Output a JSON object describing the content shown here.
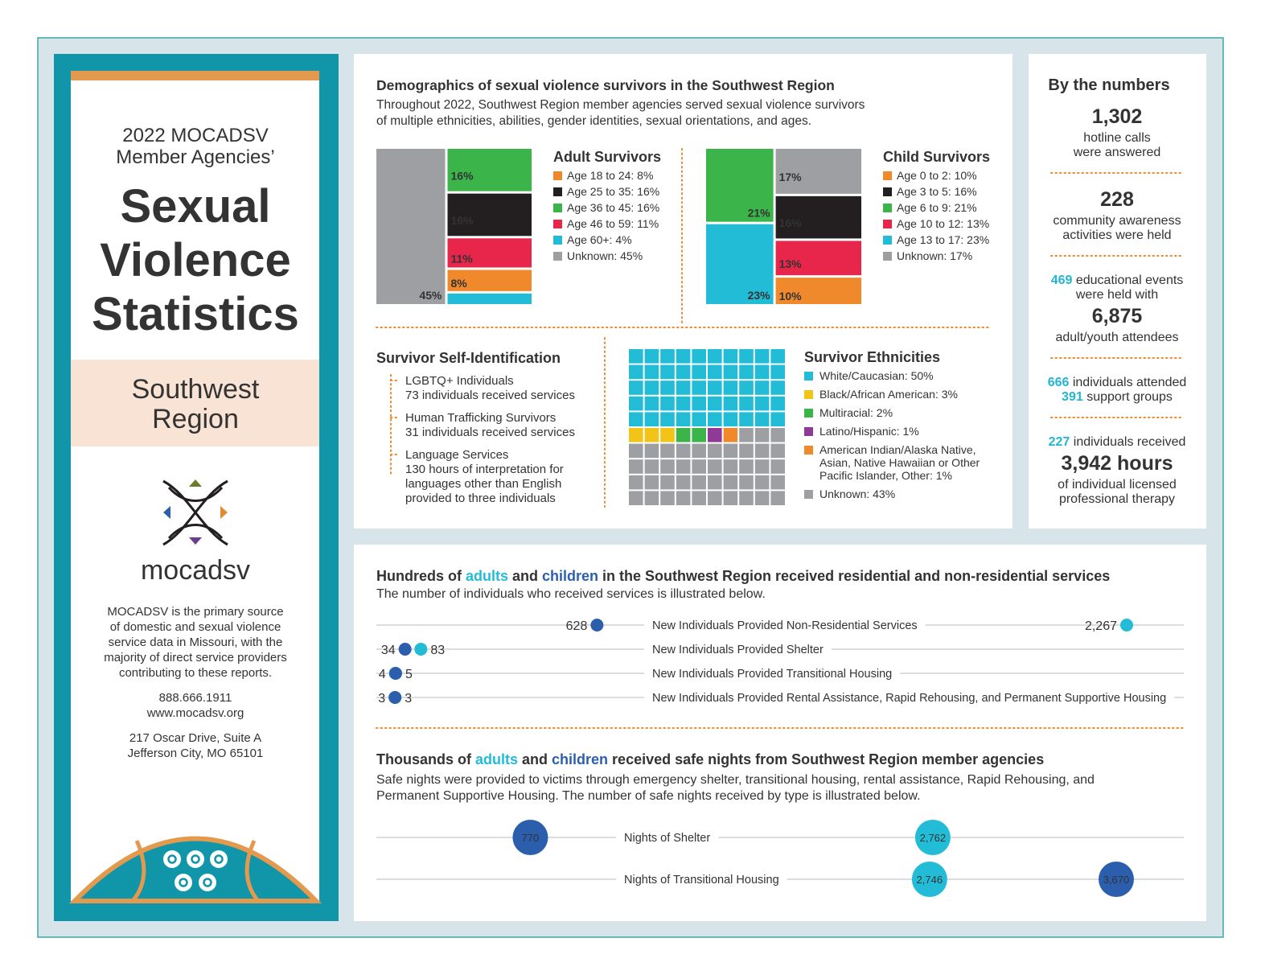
{
  "sidebar": {
    "heading": [
      "2022 MOCADSV",
      "Member Agencies’"
    ],
    "title": [
      "Sexual",
      "Violence",
      "Statistics"
    ],
    "region": [
      "Southwest",
      "Region"
    ],
    "logo": "mocadsv",
    "about": [
      "MOCADSV is the primary source",
      "of domestic and sexual violence",
      "service data in Missouri, with the",
      "majority of direct service providers",
      "contributing to these reports."
    ],
    "phone": "888.666.1911",
    "website": "www.mocadsv.org",
    "address": [
      "217 Oscar Drive, Suite A",
      "Jefferson City, MO 65101"
    ]
  },
  "demographics": {
    "title": "Demographics of sexual violence survivors in the Southwest Region",
    "subtitle": [
      "Throughout 2022, Southwest Region member agencies served sexual violence survivors",
      "of multiple ethnicities, abilities, gender identities, sexual orientations, and ages."
    ],
    "charts": [
      {
        "type": "mosaic",
        "title": "Adult Survivors",
        "categories": [
          "Age 18 to 24: 8%",
          "Age 25 to 35: 16%",
          "Age 36 to 45: 16%",
          "Age 46 to 59: 11%",
          "Age 60+: 4%",
          "Unknown: 45%"
        ],
        "values": [
          8,
          16,
          16,
          11,
          4,
          45
        ],
        "value_labels": [
          "8%",
          "16%",
          "16%",
          "11%",
          null,
          "45%"
        ],
        "colors": [
          "#f0892b",
          "#231f20",
          "#3bb54a",
          "#e8264b",
          "#22bcd6",
          "#9d9fa2"
        ]
      },
      {
        "type": "mosaic",
        "title": "Child Survivors",
        "categories": [
          "Age 0 to 2: 10%",
          "Age 3 to 5: 16%",
          "Age 6 to 9: 21%",
          "Age 10 to 12: 13%",
          "Age 13 to 17: 23%",
          "Unknown: 17%"
        ],
        "values": [
          10,
          16,
          21,
          13,
          23,
          17
        ],
        "value_labels": [
          "10%",
          "16%",
          "21%",
          "13%",
          "23%",
          "17%"
        ],
        "colors": [
          "#f0892b",
          "#231f20",
          "#3bb54a",
          "#e8264b",
          "#22bcd6",
          "#9d9fa2"
        ]
      }
    ]
  },
  "self_identification": {
    "title": "Survivor Self-Identification",
    "items": [
      {
        "name": "LGBTQ+ Individuals",
        "detail": [
          "73 individuals received services"
        ]
      },
      {
        "name": "Human Trafficking Survivors",
        "detail": [
          "31 individuals received services"
        ]
      },
      {
        "name": "Language Services",
        "detail": [
          "130 hours of interpretation for",
          "languages other than English",
          "provided to three individuals"
        ]
      }
    ]
  },
  "ethnicities": {
    "type": "waffle",
    "title": "Survivor Ethnicities",
    "categories": [
      "White/Caucasian: 50%",
      "Black/African American: 3%",
      "Multiracial: 2%",
      "Latino/Hispanic: 1%",
      "American Indian/Alaska Native, Asian, Native Hawaiian or Other Pacific Islander, Other: 1%",
      "Unknown: 43%"
    ],
    "values": [
      50,
      3,
      2,
      1,
      1,
      43
    ],
    "colors": [
      "#22bcd6",
      "#f2c418",
      "#3bb54a",
      "#8e3a96",
      "#f0892b",
      "#9d9fa2"
    ]
  },
  "numbers": {
    "title": "By the numbers",
    "items": [
      [
        {
          "big": "1,302"
        },
        {
          "text": "hotline calls"
        },
        {
          "text": "were answered"
        }
      ],
      [
        {
          "big": "228"
        },
        {
          "text": "community awareness"
        },
        {
          "text": "activities were held"
        }
      ],
      [
        {
          "num": "469",
          "text": " educational events"
        },
        {
          "text": "were held with"
        },
        {
          "big": "6,875"
        },
        {
          "text": "adult/youth attendees"
        }
      ],
      [
        {
          "num": "666",
          "text": " individuals attended"
        },
        {
          "num": "391",
          "text": " support groups"
        }
      ],
      [
        {
          "num": "227",
          "text": " individuals received"
        },
        {
          "big": "3,942 hours"
        },
        {
          "text": "of individual licensed"
        },
        {
          "text": "professional therapy"
        }
      ]
    ]
  },
  "services": {
    "type": "dot",
    "title_parts": [
      "Hundreds of ",
      " and ",
      " in the Southwest Region received residential and non-residential services"
    ],
    "subtitle": "The number of individuals who received services is illustrated below.",
    "categories": [
      "New Individuals Provided Non-Residential Services",
      "New Individuals Provided Shelter",
      "New Individuals Provided Transitional Housing",
      "New Individuals Provided Rental Assistance, Rapid Rehousing, and Permanent Supportive Housing"
    ],
    "series": [
      {
        "name": "adults",
        "color": "#22bcd6",
        "values": [
          2267,
          83,
          4,
          3
        ],
        "value_labels": [
          "2,267",
          "83",
          "4",
          "3"
        ]
      },
      {
        "name": "children",
        "color": "#2b5fad",
        "values": [
          628,
          34,
          5,
          3
        ],
        "value_labels": [
          "628",
          "34",
          "5",
          "3"
        ]
      }
    ]
  },
  "nights": {
    "type": "bubble",
    "title_parts": [
      "Thousands of ",
      " and ",
      " received safe nights from Southwest Region member agencies"
    ],
    "subtitle": [
      "Safe nights were provided to victims through emergency shelter, transitional housing, rental assistance, Rapid Rehousing, and",
      "Permanent Supportive Housing. The number of safe nights received by type is illustrated below."
    ],
    "categories": [
      "Nights of Shelter",
      "Nights of Transitional Housing"
    ],
    "series": [
      {
        "name": "adults",
        "color": "#22bcd6",
        "values": [
          2762,
          2746
        ],
        "value_labels": [
          "2,762",
          "2,746"
        ]
      },
      {
        "name": "children",
        "color": "#2b5fad",
        "values": [
          770,
          3670
        ],
        "value_labels": [
          "770",
          "3,670"
        ]
      }
    ]
  }
}
